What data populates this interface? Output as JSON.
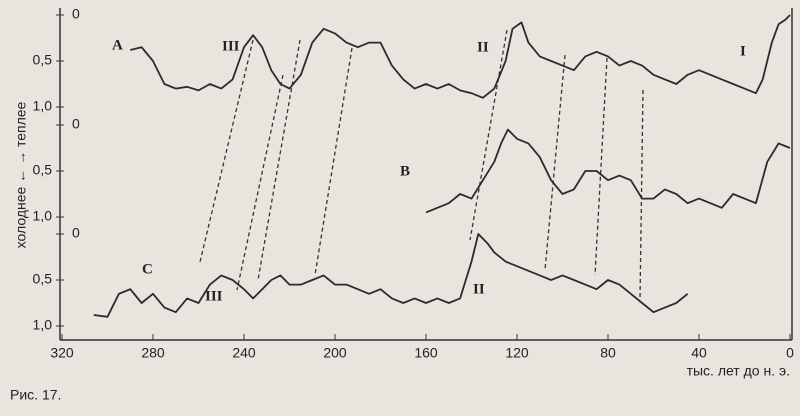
{
  "chart_data": [
    {
      "type": "line",
      "label": "A",
      "color": "#2b2b2b",
      "annotations": [
        "III",
        "II",
        "I"
      ],
      "xlim": [
        320,
        0
      ],
      "ylim": [
        1,
        0
      ],
      "yticks": [
        0,
        {
          "value": 0.5,
          "label": "0,5"
        },
        {
          "value": 1,
          "label": "1,0"
        }
      ],
      "x": [
        290,
        285,
        280,
        275,
        270,
        265,
        260,
        255,
        250,
        245,
        240,
        236,
        232,
        228,
        224,
        220,
        215,
        210,
        205,
        200,
        195,
        190,
        185,
        180,
        175,
        170,
        165,
        160,
        155,
        150,
        145,
        140,
        135,
        130,
        125,
        122,
        118,
        115,
        110,
        105,
        100,
        95,
        90,
        85,
        80,
        75,
        70,
        65,
        60,
        55,
        50,
        45,
        40,
        35,
        30,
        25,
        20,
        15,
        12,
        8,
        5,
        2,
        0
      ],
      "values": [
        0.38,
        0.35,
        0.5,
        0.75,
        0.8,
        0.78,
        0.82,
        0.75,
        0.8,
        0.7,
        0.35,
        0.22,
        0.35,
        0.6,
        0.75,
        0.8,
        0.65,
        0.3,
        0.15,
        0.2,
        0.3,
        0.35,
        0.3,
        0.3,
        0.55,
        0.7,
        0.8,
        0.75,
        0.8,
        0.75,
        0.82,
        0.85,
        0.9,
        0.8,
        0.5,
        0.15,
        0.08,
        0.3,
        0.45,
        0.5,
        0.55,
        0.6,
        0.45,
        0.4,
        0.45,
        0.55,
        0.5,
        0.55,
        0.65,
        0.7,
        0.75,
        0.65,
        0.6,
        0.65,
        0.7,
        0.75,
        0.8,
        0.85,
        0.7,
        0.3,
        0.1,
        0.05,
        0
      ]
    },
    {
      "type": "line",
      "label": "B",
      "color": "#2b2b2b",
      "ylabel": "холоднее ← → теплее",
      "xlim": [
        320,
        0
      ],
      "ylim": [
        1,
        0
      ],
      "yticks": [
        0,
        {
          "value": 0.5,
          "label": "0,5"
        },
        {
          "value": 1,
          "label": "1,0"
        }
      ],
      "x": [
        160,
        155,
        150,
        145,
        140,
        135,
        130,
        127,
        124,
        120,
        115,
        110,
        105,
        100,
        95,
        90,
        85,
        80,
        75,
        70,
        65,
        60,
        55,
        50,
        45,
        40,
        35,
        30,
        25,
        20,
        15,
        10,
        5,
        0
      ],
      "values": [
        0.95,
        0.9,
        0.85,
        0.75,
        0.8,
        0.6,
        0.4,
        0.2,
        0.05,
        0.15,
        0.2,
        0.35,
        0.6,
        0.75,
        0.7,
        0.5,
        0.5,
        0.6,
        0.55,
        0.6,
        0.8,
        0.8,
        0.7,
        0.75,
        0.85,
        0.8,
        0.85,
        0.9,
        0.75,
        0.8,
        0.85,
        0.4,
        0.2,
        0.25
      ]
    },
    {
      "type": "line",
      "label": "C",
      "color": "#2b2b2b",
      "annotations": [
        "III",
        "II"
      ],
      "xlabel": "тыс. лет до н. э.",
      "xlim": [
        320,
        0
      ],
      "ylim": [
        1,
        0
      ],
      "xticks": [
        320,
        280,
        240,
        200,
        160,
        120,
        80,
        40,
        0
      ],
      "yticks": [
        0,
        {
          "value": 0.5,
          "label": "0,5"
        },
        {
          "value": 1,
          "label": "1,0"
        }
      ],
      "x": [
        306,
        300,
        295,
        290,
        285,
        280,
        275,
        270,
        265,
        260,
        255,
        250,
        245,
        240,
        236,
        232,
        228,
        224,
        220,
        215,
        210,
        205,
        200,
        195,
        190,
        185,
        180,
        175,
        170,
        165,
        160,
        155,
        150,
        145,
        140,
        137,
        133,
        130,
        125,
        120,
        115,
        110,
        105,
        100,
        95,
        90,
        85,
        80,
        75,
        70,
        65,
        60,
        55,
        50,
        45
      ],
      "values": [
        0.88,
        0.9,
        0.65,
        0.6,
        0.75,
        0.65,
        0.8,
        0.85,
        0.7,
        0.75,
        0.55,
        0.45,
        0.5,
        0.6,
        0.7,
        0.6,
        0.5,
        0.45,
        0.55,
        0.55,
        0.5,
        0.45,
        0.55,
        0.55,
        0.6,
        0.65,
        0.6,
        0.7,
        0.75,
        0.7,
        0.75,
        0.7,
        0.75,
        0.7,
        0.3,
        0,
        0.1,
        0.2,
        0.3,
        0.35,
        0.4,
        0.45,
        0.5,
        0.45,
        0.5,
        0.55,
        0.6,
        0.5,
        0.55,
        0.65,
        0.75,
        0.85,
        0.8,
        0.75,
        0.65
      ]
    }
  ],
  "caption": "Рис. 17."
}
